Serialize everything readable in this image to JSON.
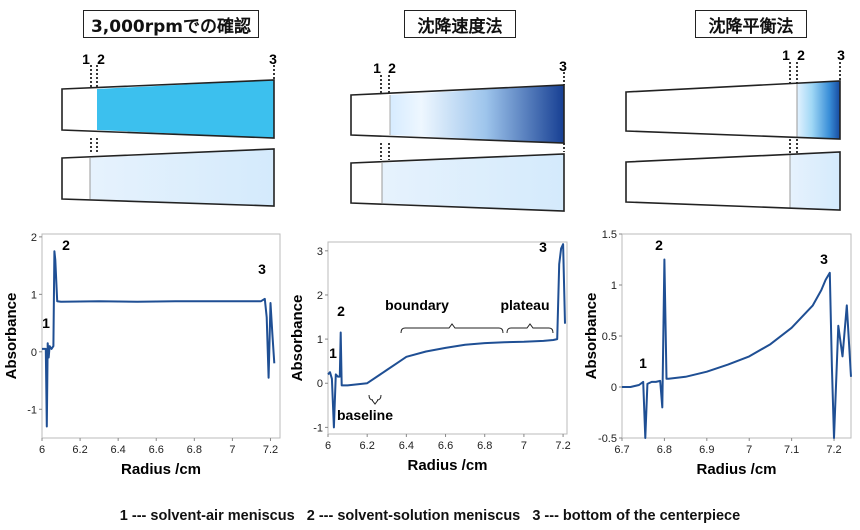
{
  "panels": [
    {
      "title": "3,000rpmでの確認",
      "marks": [
        "1",
        "2",
        "3"
      ],
      "upper_cell": "full",
      "lower_cell": "full",
      "chart_data": {
        "type": "line",
        "xlabel": "Radius /cm",
        "ylabel": "Absorbance",
        "xlim": [
          6.0,
          7.25
        ],
        "ylim": [
          -1.5,
          2.05
        ],
        "xticks": [
          "6",
          "6.2",
          "6.4",
          "6.6",
          "6.8",
          "7",
          "7.2"
        ],
        "yticks": [
          "-1",
          "0",
          "1",
          "2"
        ],
        "annotations": [
          "1",
          "2",
          "3"
        ],
        "x": [
          6.0,
          6.02,
          6.025,
          6.03,
          6.035,
          6.04,
          6.05,
          6.06,
          6.065,
          6.07,
          6.08,
          6.1,
          6.3,
          6.5,
          6.7,
          6.9,
          7.1,
          7.15,
          7.17,
          7.18,
          7.19,
          7.2,
          7.21,
          7.22
        ],
        "y": [
          0.05,
          0.05,
          -1.3,
          0.15,
          -0.1,
          0.1,
          0.05,
          0.1,
          1.75,
          1.6,
          0.88,
          0.87,
          0.88,
          0.87,
          0.88,
          0.88,
          0.88,
          0.88,
          0.92,
          0.6,
          -0.45,
          0.85,
          0.3,
          -0.2
        ]
      }
    },
    {
      "title": "沈降速度法",
      "marks": [
        "1",
        "2",
        "3"
      ],
      "upper_cell": "boundary",
      "lower_cell": "full",
      "chart_data": {
        "type": "line",
        "xlabel": "Radius /cm",
        "ylabel": "Absorbance",
        "xlim": [
          6.0,
          7.22
        ],
        "ylim": [
          -1.15,
          3.2
        ],
        "xticks": [
          "6",
          "6.2",
          "6.4",
          "6.6",
          "6.8",
          "7",
          "7.2"
        ],
        "yticks": [
          "-1",
          "0",
          "1",
          "2",
          "3"
        ],
        "annotations": [
          "1",
          "2",
          "3",
          "boundary",
          "plateau",
          "baseline"
        ],
        "x": [
          6.0,
          6.01,
          6.02,
          6.03,
          6.04,
          6.05,
          6.06,
          6.065,
          6.07,
          6.08,
          6.1,
          6.2,
          6.3,
          6.35,
          6.4,
          6.5,
          6.6,
          6.7,
          6.8,
          6.9,
          7.0,
          7.1,
          7.15,
          7.17,
          7.18,
          7.19,
          7.2,
          7.21
        ],
        "y": [
          0.2,
          0.25,
          0.1,
          -1.0,
          0.2,
          0.15,
          0.15,
          1.15,
          -0.05,
          -0.05,
          -0.05,
          0.0,
          0.3,
          0.45,
          0.6,
          0.72,
          0.8,
          0.87,
          0.91,
          0.93,
          0.94,
          0.96,
          0.98,
          1.0,
          2.7,
          3.05,
          3.15,
          1.35
        ]
      }
    },
    {
      "title": "沈降平衡法",
      "marks": [
        "1",
        "2",
        "3"
      ],
      "upper_cell": "equilibrium",
      "lower_cell": "partial",
      "chart_data": {
        "type": "line",
        "xlabel": "Radius /cm",
        "ylabel": "Absorbance",
        "xlim": [
          6.7,
          7.24
        ],
        "ylim": [
          -0.5,
          1.5
        ],
        "xticks": [
          "6.7",
          "6.8",
          "6.9",
          "7",
          "7.1",
          "7.2"
        ],
        "yticks": [
          "-0.5",
          "0",
          "0.5",
          "1",
          "1.5"
        ],
        "annotations": [
          "1",
          "2",
          "3"
        ],
        "x": [
          6.7,
          6.72,
          6.74,
          6.75,
          6.755,
          6.76,
          6.77,
          6.78,
          6.79,
          6.795,
          6.8,
          6.805,
          6.81,
          6.85,
          6.9,
          6.95,
          7.0,
          7.05,
          7.1,
          7.15,
          7.17,
          7.18,
          7.19,
          7.195,
          7.2,
          7.21,
          7.22,
          7.23,
          7.24
        ],
        "y": [
          0.0,
          0.0,
          0.02,
          0.05,
          -0.5,
          0.03,
          0.05,
          0.05,
          0.06,
          -0.2,
          1.25,
          0.08,
          0.08,
          0.1,
          0.15,
          0.22,
          0.3,
          0.42,
          0.58,
          0.8,
          0.95,
          1.05,
          1.12,
          0.2,
          -0.5,
          0.6,
          0.3,
          0.8,
          0.1
        ]
      }
    }
  ],
  "caption": "1 --- solvent-air meniscus   2 --- solvent-solution meniscus   3 --- bottom of the centerpiece",
  "colors": {
    "curve": "#1f4f94",
    "cell_full": "#3cc0ee",
    "cell_light": "#dcefff",
    "cell_dark": "#173f93",
    "outline": "#222222"
  }
}
